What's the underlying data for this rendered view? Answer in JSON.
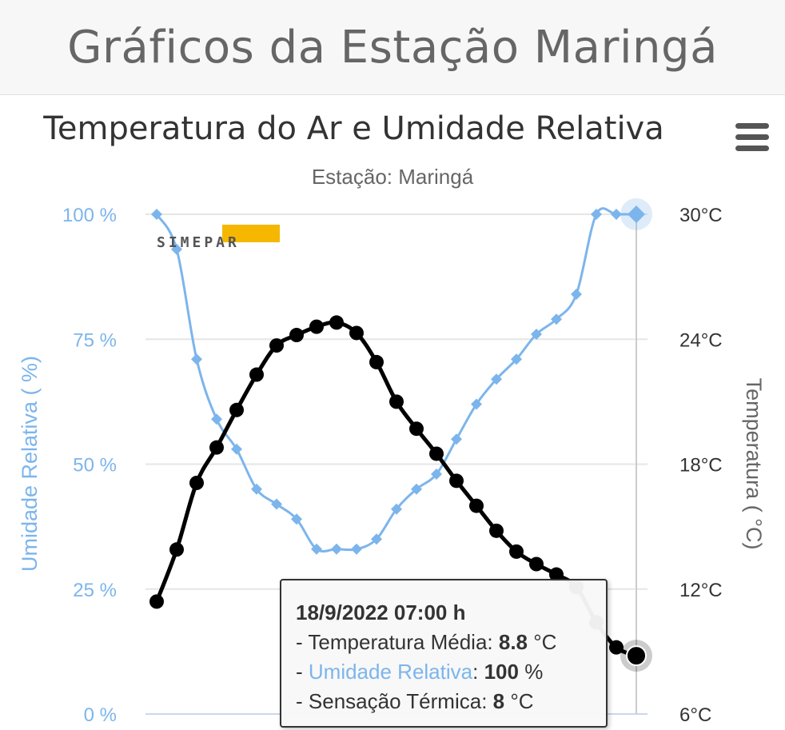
{
  "page": {
    "title": "Gráficos da Estação Maringá"
  },
  "logo": {
    "text": "SIMEPAR"
  },
  "chart_data": {
    "type": "line",
    "title": "Temperatura do Ar e Umidade Relativa",
    "subtitle": "Estação: Maringá",
    "y_left": {
      "label": "Umidade Relativa ( %)",
      "ticks": [
        "0 %",
        "25 %",
        "50 %",
        "75 %",
        "100 %"
      ],
      "min": 0,
      "max": 100,
      "color": "#7cb5ec"
    },
    "y_right": {
      "label": "Temperatura ( °C)",
      "ticks": [
        "6°C",
        "12°C",
        "18°C",
        "24°C",
        "30°C"
      ],
      "min": 6,
      "max": 30,
      "color": "#333333"
    },
    "grid": true,
    "series": [
      {
        "name": "Umidade Relativa",
        "axis": "left",
        "color": "#7cb5ec",
        "marker": "diamond",
        "values": [
          100,
          93,
          71,
          59,
          53,
          45,
          42,
          39,
          33,
          33,
          33,
          35,
          41,
          45,
          48,
          55,
          62,
          67,
          71,
          76,
          79,
          84,
          100,
          100,
          100
        ]
      },
      {
        "name": "Temperatura Média",
        "axis": "right",
        "color": "#000000",
        "marker": "circle",
        "values": [
          11.4,
          13.9,
          17.1,
          18.8,
          20.6,
          22.3,
          23.7,
          24.2,
          24.6,
          24.8,
          24.3,
          22.9,
          21.0,
          19.7,
          18.5,
          17.2,
          16.0,
          14.8,
          13.8,
          13.2,
          12.7,
          12.1,
          10.4,
          9.2,
          8.8
        ]
      }
    ]
  },
  "tooltip": {
    "header": "18/9/2022 07:00 h",
    "temp_label": "Temperatura Média",
    "temp_value": "8.8",
    "temp_unit": "°C",
    "hum_label": "Umidade Relativa",
    "hum_value": "100",
    "hum_unit": "%",
    "feel_label": "Sensação Térmica",
    "feel_value": "8",
    "feel_unit": "°C"
  }
}
